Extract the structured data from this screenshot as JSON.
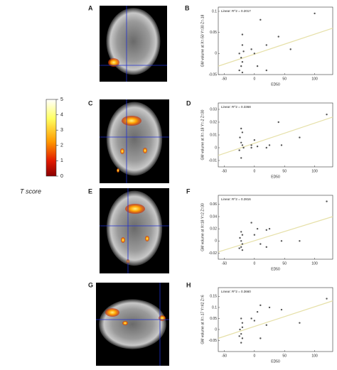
{
  "panel_labels": [
    "A",
    "B",
    "C",
    "D",
    "E",
    "F",
    "G",
    "H"
  ],
  "colorbar": {
    "label": "T score",
    "lim": [
      0,
      5
    ],
    "ticks": [
      0,
      1,
      2,
      3,
      4,
      5
    ]
  },
  "chart_data": [
    {
      "type": "scatter",
      "ylabel": "GM volume at X=-50 Y=30 Z=-18",
      "xlabel": "ED50",
      "xlim": [
        -60,
        130
      ],
      "xticks": [
        -50,
        0,
        50,
        100
      ],
      "ylim": [
        -0.05,
        0.11
      ],
      "yticks": [
        -0.05,
        0,
        0.05,
        0.1
      ],
      "color": "#555555",
      "x": [
        -20,
        -20,
        -25,
        -22,
        -20,
        -22,
        -25,
        -18,
        0,
        -5,
        5,
        10,
        20,
        20,
        40,
        60,
        100,
        -20
      ],
      "values": [
        0.045,
        0.02,
        0.0,
        -0.01,
        -0.02,
        -0.03,
        -0.04,
        0.005,
        0.0,
        0.01,
        -0.03,
        0.08,
        0.02,
        -0.04,
        0.04,
        0.01,
        0.095,
        -0.045
      ],
      "fit": {
        "name": "Linear: R^2 = 0.2017",
        "x": [
          -60,
          130
        ],
        "values": [
          -0.03,
          0.06
        ],
        "color": "#e6e0a8"
      }
    },
    {
      "type": "scatter",
      "ylabel": "GM volume at X=-18 Y=-2 Z=30",
      "xlabel": "ED50",
      "xlim": [
        -60,
        130
      ],
      "xticks": [
        -50,
        0,
        50,
        100
      ],
      "ylim": [
        -0.015,
        0.035
      ],
      "yticks": [
        -0.01,
        0,
        0.01,
        0.02,
        0.03
      ],
      "color": "#555555",
      "x": [
        -22,
        -20,
        -24,
        -22,
        -20,
        -18,
        -25,
        -22,
        -5,
        -5,
        0,
        5,
        20,
        25,
        40,
        45,
        75,
        120
      ],
      "values": [
        0.015,
        0.012,
        0.008,
        0.004,
        0.002,
        0.0,
        -0.002,
        -0.008,
        0.0,
        0.002,
        0.006,
        0.001,
        0.0,
        0.002,
        0.02,
        0.002,
        0.008,
        0.026
      ],
      "fit": {
        "name": "Linear: R^2 = 0.3368",
        "x": [
          -60,
          130
        ],
        "values": [
          -0.006,
          0.024
        ],
        "color": "#e6e0a8"
      }
    },
    {
      "type": "scatter",
      "ylabel": "GM volume at X=18 Y=2 Z=30",
      "xlabel": "ED50",
      "xlim": [
        -60,
        130
      ],
      "xticks": [
        -50,
        0,
        50,
        100
      ],
      "ylim": [
        -0.03,
        0.075
      ],
      "yticks": [
        -0.02,
        0,
        0.02,
        0.04,
        0.06
      ],
      "color": "#555555",
      "x": [
        -22,
        -20,
        -24,
        -22,
        -20,
        -22,
        -25,
        -20,
        -5,
        0,
        5,
        10,
        20,
        25,
        20,
        45,
        75,
        120
      ],
      "values": [
        0.015,
        0.01,
        0.005,
        0.0,
        -0.005,
        -0.01,
        -0.012,
        -0.015,
        0.03,
        0.01,
        0.02,
        -0.005,
        0.018,
        0.02,
        -0.01,
        0.0,
        0.0,
        0.065
      ],
      "fit": {
        "name": "Linear: R^2 = 0.2816",
        "x": [
          -60,
          130
        ],
        "values": [
          -0.018,
          0.04
        ],
        "color": "#e6e0a8"
      }
    },
    {
      "type": "scatter",
      "ylabel": "GM volume at X=-17 Y=42 Z=6",
      "xlabel": "ED50",
      "xlim": [
        -60,
        130
      ],
      "xticks": [
        -50,
        0,
        50,
        100
      ],
      "ylim": [
        -0.1,
        0.19
      ],
      "yticks": [
        -0.05,
        0,
        0.05,
        0.1,
        0.15
      ],
      "color": "#555555",
      "x": [
        -22,
        -20,
        -24,
        -22,
        -20,
        -22,
        -25,
        -20,
        -5,
        0,
        5,
        10,
        10,
        20,
        25,
        45,
        75,
        120
      ],
      "values": [
        0.05,
        0.03,
        0.0,
        -0.02,
        -0.04,
        -0.06,
        -0.03,
        0.01,
        0.05,
        0.04,
        0.08,
        0.11,
        -0.04,
        0.02,
        0.1,
        0.09,
        0.03,
        0.14
      ],
      "fit": {
        "name": "Linear: R^2 = 0.3660",
        "x": [
          -60,
          130
        ],
        "values": [
          -0.04,
          0.13
        ],
        "color": "#e6e0a8"
      }
    }
  ]
}
